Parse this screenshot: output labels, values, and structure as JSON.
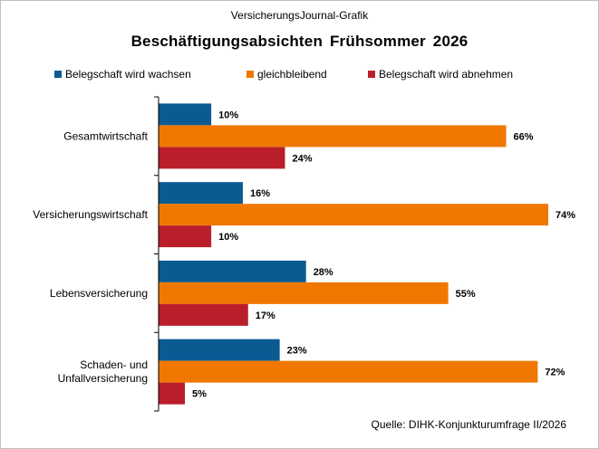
{
  "supertitle": "VersicherungsJournal-Grafik",
  "title": "Beschäftigungsabsichten Frühsommer 2026",
  "source": "Quelle: DIHK-Konjunkturumfrage II/2026",
  "chart_data": {
    "type": "bar",
    "orientation": "horizontal",
    "title": "Beschäftigungsabsichten Frühsommer 2026",
    "categories": [
      "Gesamtwirtschaft",
      "Versicherungswirtschaft",
      "Lebensversicherung",
      "Schaden- und Unfallversicherung"
    ],
    "category_lines": [
      [
        "Gesamtwirtschaft"
      ],
      [
        "Versicherungswirtschaft"
      ],
      [
        "Lebensversicherung"
      ],
      [
        "Schaden- und",
        "Unfallversicherung"
      ]
    ],
    "series": [
      {
        "name": "Belegschaft wird wachsen",
        "color": "#0b5b93",
        "values": [
          10,
          16,
          28,
          23
        ]
      },
      {
        "name": "gleichbleibend",
        "color": "#f07800",
        "values": [
          66,
          74,
          55,
          72
        ]
      },
      {
        "name": "Belegschaft wird abnehmen",
        "color": "#bb1e2b",
        "values": [
          24,
          10,
          17,
          5
        ]
      }
    ],
    "value_suffix": "%",
    "xlim": [
      0,
      74
    ],
    "legend_position": "top",
    "grid": false
  }
}
